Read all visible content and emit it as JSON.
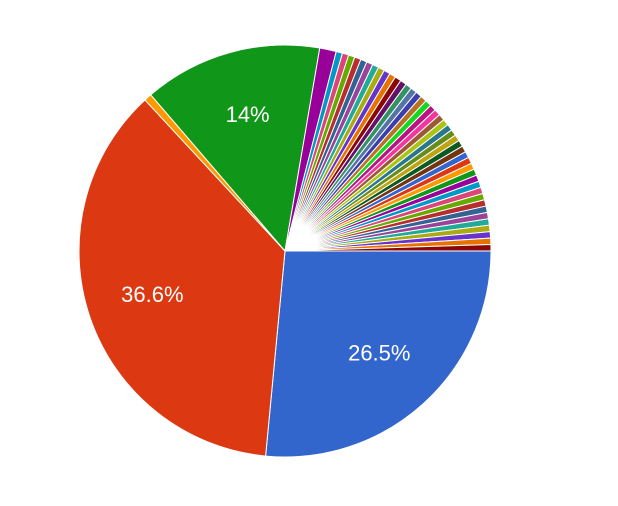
{
  "chart_data": {
    "type": "pie",
    "categories": [
      null,
      null,
      null,
      null,
      null,
      null,
      null,
      null,
      null,
      null,
      null,
      null,
      null,
      null,
      null,
      null,
      null,
      null,
      null,
      null,
      null,
      null,
      null,
      null,
      null,
      null,
      null,
      null,
      null,
      null,
      null,
      null,
      null,
      null,
      null,
      null,
      null,
      null,
      null,
      null,
      null,
      null,
      null,
      null,
      null,
      null,
      null
    ],
    "values": [
      26.5,
      36.6,
      0.6,
      14,
      1.3,
      0.5,
      0.5,
      0.5,
      0.5,
      0.5,
      0.5,
      0.5,
      0.5,
      0.5,
      0.5,
      0.5,
      0.5,
      0.5,
      0.5,
      0.5,
      0.5,
      0.5,
      0.5,
      0.5,
      0.5,
      0.5,
      0.5,
      0.5,
      0.5,
      0.5,
      0.5,
      0.5,
      0.5,
      0.5,
      0.5,
      0.5,
      0.5,
      0.5,
      0.5,
      0.5,
      0.5,
      0.5,
      0.5,
      0.5,
      0.5,
      0.5,
      0.5
    ],
    "value_labels": [
      "26.5%",
      "36.6%",
      null,
      "14%",
      null,
      null,
      null,
      null,
      null,
      null,
      null,
      null,
      null,
      null,
      null,
      null,
      null,
      null,
      null,
      null,
      null,
      null,
      null,
      null,
      null,
      null,
      null,
      null,
      null,
      null,
      null,
      null,
      null,
      null,
      null,
      null,
      null,
      null,
      null,
      null,
      null,
      null,
      null,
      null,
      null,
      null,
      null
    ],
    "colors": [
      "#3366cc",
      "#dc3912",
      "#ff9900",
      "#109618",
      "#990099",
      "#0099c6",
      "#dd4477",
      "#66aa00",
      "#b82e2e",
      "#316395",
      "#994499",
      "#22aa99",
      "#aaaa11",
      "#6633cc",
      "#e67300",
      "#8b0707",
      "#651067",
      "#329262",
      "#5574a6",
      "#3b3eac",
      "#b77322",
      "#16d620",
      "#b91383",
      "#f4359e",
      "#9c5935",
      "#a9c413",
      "#2a778d",
      "#668d1c",
      "#bea413",
      "#0c5922",
      "#743411",
      "#3366cc",
      "#dc3912",
      "#ff9900",
      "#109618",
      "#990099",
      "#0099c6",
      "#dd4477",
      "#66aa00",
      "#b82e2e",
      "#316395",
      "#994499",
      "#22aa99",
      "#aaaa11",
      "#6633cc",
      "#e67300",
      "#8b0707"
    ]
  }
}
